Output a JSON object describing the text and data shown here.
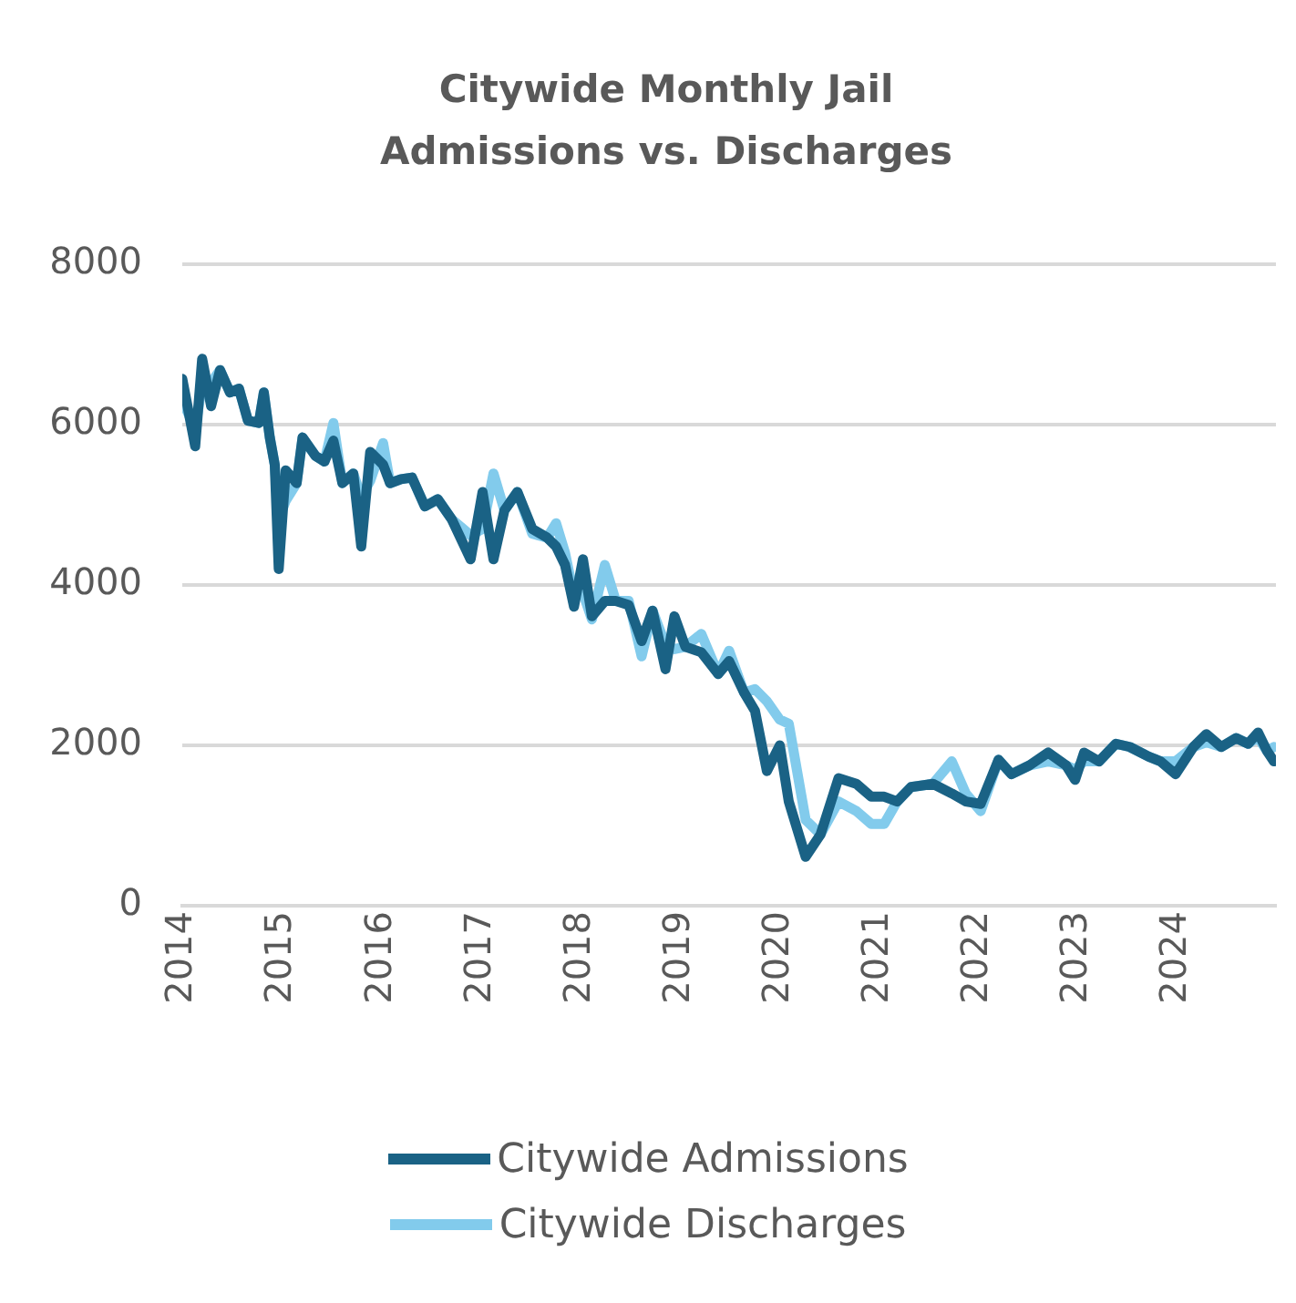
{
  "chart_data": {
    "type": "line",
    "title": "Citywide Monthly Jail Admissions vs. Discharges",
    "x": [
      2014.0,
      2014.13,
      2014.2,
      2014.29,
      2014.38,
      2014.48,
      2014.57,
      2014.66,
      2014.77,
      2014.82,
      2014.88,
      2014.93,
      2014.97,
      2015.04,
      2015.15,
      2015.21,
      2015.34,
      2015.43,
      2015.52,
      2015.61,
      2015.72,
      2015.8,
      2015.89,
      2016.02,
      2016.09,
      2016.2,
      2016.31,
      2016.44,
      2016.57,
      2016.71,
      2016.9,
      2017.02,
      2017.13,
      2017.24,
      2017.37,
      2017.52,
      2017.67,
      2017.76,
      2017.85,
      2017.94,
      2018.03,
      2018.12,
      2018.25,
      2018.36,
      2018.49,
      2018.62,
      2018.73,
      2018.86,
      2018.95,
      2019.06,
      2019.22,
      2019.39,
      2019.5,
      2019.65,
      2019.76,
      2019.88,
      2020.01,
      2020.1,
      2020.27,
      2020.42,
      2020.6,
      2020.78,
      2020.93,
      2021.06,
      2021.19,
      2021.33,
      2021.55,
      2021.74,
      2021.88,
      2022.03,
      2022.21,
      2022.34,
      2022.52,
      2022.71,
      2022.89,
      2022.98,
      2023.07,
      2023.22,
      2023.39,
      2023.53,
      2023.72,
      2023.84,
      2023.99,
      2024.17,
      2024.3,
      2024.45,
      2024.6,
      2024.72,
      2024.82,
      2024.91,
      2024.98
    ],
    "series": [
      {
        "name": "Citywide Admissions",
        "color": "#1a6285",
        "values": [
          6570,
          5730,
          6820,
          6230,
          6680,
          6400,
          6450,
          6050,
          6020,
          6400,
          5840,
          5500,
          4200,
          5430,
          5270,
          5840,
          5610,
          5540,
          5800,
          5270,
          5390,
          4480,
          5660,
          5500,
          5270,
          5320,
          5340,
          4980,
          5070,
          4820,
          4320,
          5160,
          4320,
          4930,
          5160,
          4700,
          4590,
          4480,
          4250,
          3730,
          4320,
          3610,
          3800,
          3800,
          3750,
          3300,
          3680,
          2950,
          3610,
          3230,
          3160,
          2890,
          3050,
          2660,
          2430,
          1680,
          2000,
          1300,
          610,
          890,
          1590,
          1520,
          1360,
          1360,
          1300,
          1480,
          1520,
          1400,
          1300,
          1270,
          1820,
          1640,
          1750,
          1910,
          1750,
          1570,
          1910,
          1800,
          2020,
          1980,
          1860,
          1800,
          1640,
          1980,
          2140,
          1980,
          2090,
          2020,
          2160,
          1930,
          1800
        ]
      },
      {
        "name": "Citywide Discharges",
        "color": "#82cbec",
        "values": [
          6300,
          5950,
          6500,
          6520,
          6680,
          6400,
          6450,
          6050,
          6020,
          6400,
          5840,
          5500,
          4820,
          5050,
          5270,
          5840,
          5610,
          5540,
          6020,
          5270,
          5390,
          5100,
          5300,
          5770,
          5270,
          5320,
          5340,
          4980,
          5070,
          4820,
          4620,
          4700,
          5390,
          4930,
          5160,
          4640,
          4590,
          4770,
          4400,
          3860,
          3900,
          3570,
          4250,
          3800,
          3800,
          3110,
          3680,
          3250,
          3200,
          3230,
          3390,
          2890,
          3180,
          2660,
          2700,
          2550,
          2320,
          2270,
          1070,
          890,
          1300,
          1180,
          1020,
          1020,
          1300,
          1480,
          1520,
          1800,
          1400,
          1180,
          1820,
          1640,
          1750,
          1800,
          1750,
          1700,
          1800,
          1800,
          2020,
          1980,
          1860,
          1800,
          1800,
          1980,
          2040,
          1980,
          2090,
          2020,
          2100,
          1930,
          1980
        ]
      }
    ],
    "xlim": [
      2014,
      2025
    ],
    "xticks": [
      2014,
      2015,
      2016,
      2017,
      2018,
      2019,
      2020,
      2021,
      2022,
      2023,
      2024
    ],
    "ylim": [
      0,
      8000
    ],
    "yticks": [
      0,
      2000,
      4000,
      6000,
      8000
    ],
    "grid": "y",
    "legend": "bottom",
    "marker": "none",
    "line_style": "solid"
  }
}
